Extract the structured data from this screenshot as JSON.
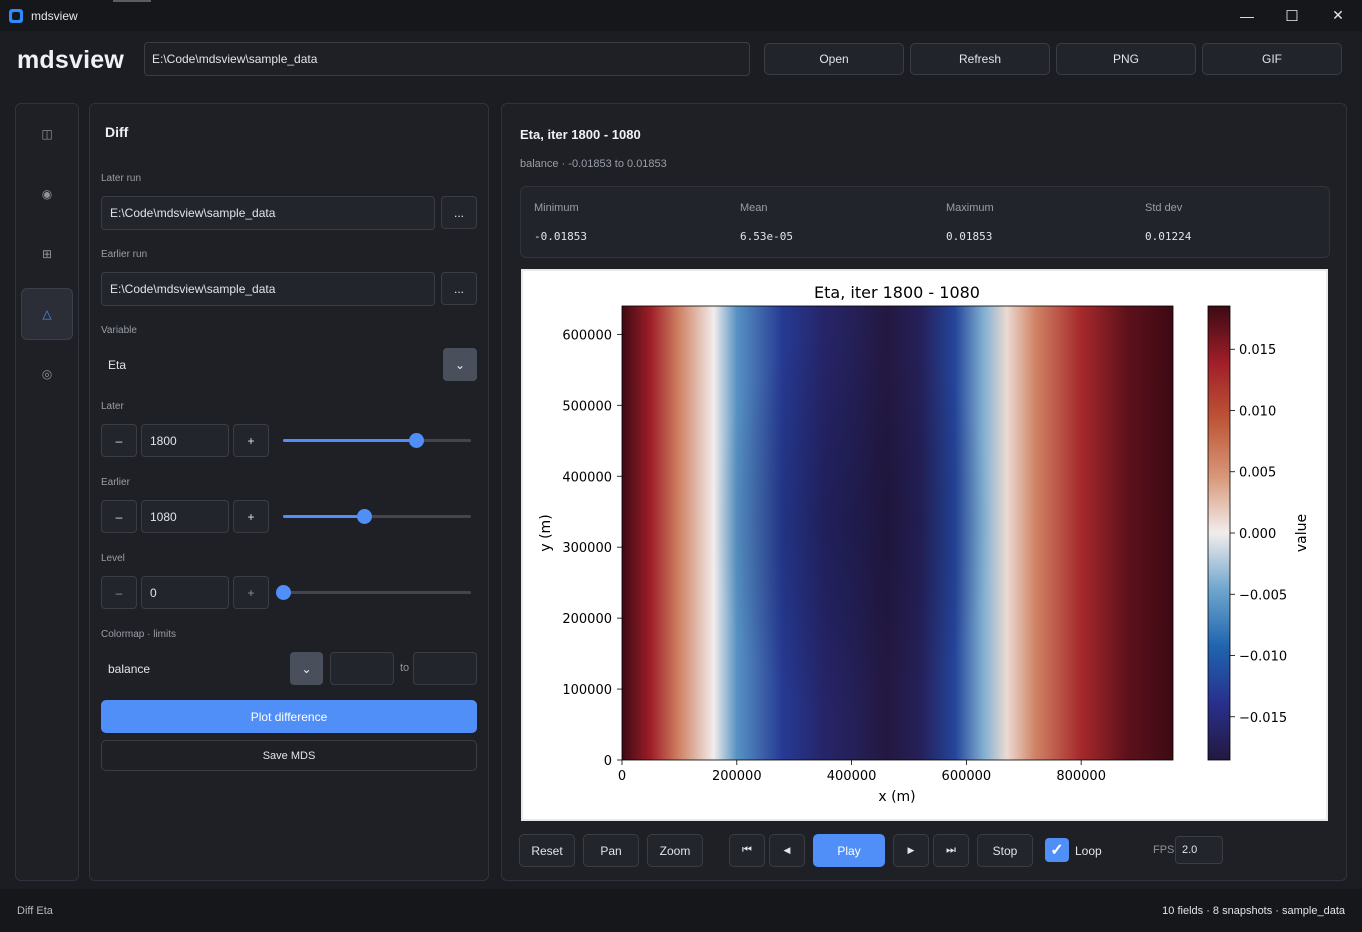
{
  "window": {
    "title": "mdsview",
    "minimize": "—",
    "maximize": "☐",
    "close": "✕"
  },
  "header": {
    "brand": "mdsview",
    "path_value": "E:\\Code\\mdsview\\sample_data",
    "buttons": {
      "open": "Open",
      "refresh": "Refresh",
      "png": "PNG",
      "gif": "GIF"
    }
  },
  "rail": {
    "items": [
      {
        "icon": "columns-icon",
        "glyph": "◫"
      },
      {
        "icon": "target-icon",
        "glyph": "◉"
      },
      {
        "icon": "grid-icon",
        "glyph": "⊞"
      },
      {
        "icon": "triangle-icon",
        "glyph": "△"
      },
      {
        "icon": "layers-icon",
        "glyph": "◎"
      }
    ],
    "active": 3
  },
  "diff": {
    "title": "Diff",
    "later_run": {
      "label": "Later run",
      "value": "E:\\Code\\mdsview\\sample_data",
      "browse": "..."
    },
    "earlier_run": {
      "label": "Earlier run",
      "value": "E:\\Code\\mdsview\\sample_data",
      "browse": "..."
    },
    "variable": {
      "label": "Variable",
      "value": "Eta",
      "caret": "⌄"
    },
    "later": {
      "label": "Later",
      "value": "1800",
      "minus": "–",
      "plus": "+",
      "fraction": 0.71
    },
    "earlier": {
      "label": "Earlier",
      "value": "1080",
      "minus": "–",
      "plus": "+",
      "fraction": 0.43
    },
    "level": {
      "label": "Level",
      "value": "0",
      "minus": "–",
      "plus": "+",
      "fraction": 0.0
    },
    "colormap": {
      "label": "Colormap · limits",
      "value": "balance",
      "caret": "⌄",
      "min": "",
      "max": "",
      "to": "to"
    },
    "plot_button": "Plot difference",
    "save_button": "Save MDS"
  },
  "plot": {
    "title": "Eta, iter 1800 - 1080",
    "subtitle": "balance  ·  -0.01853 to 0.01853",
    "stats": [
      {
        "label": "Minimum",
        "value": "-0.01853"
      },
      {
        "label": "Mean",
        "value": "6.53e-05"
      },
      {
        "label": "Maximum",
        "value": "0.01853"
      },
      {
        "label": "Std dev",
        "value": "0.01224"
      }
    ]
  },
  "chart_data": {
    "type": "heatmap",
    "title": "Eta, iter 1800 - 1080",
    "xlabel": "x (m)",
    "ylabel": "y (m)",
    "xlim": [
      0,
      960000
    ],
    "ylim": [
      0,
      640000
    ],
    "x_ticks": [
      0,
      200000,
      400000,
      600000,
      800000
    ],
    "y_ticks": [
      0,
      100000,
      200000,
      300000,
      400000,
      500000,
      600000
    ],
    "colorbar": {
      "label": "value",
      "range": [
        -0.01853,
        0.01853
      ],
      "ticks": [
        -0.015,
        -0.01,
        -0.005,
        0.0,
        0.005,
        0.01,
        0.015
      ],
      "tick_labels": [
        "−0.015",
        "−0.010",
        "−0.005",
        "0.000",
        "0.005",
        "0.010",
        "0.015"
      ]
    },
    "colormap": "balance",
    "profile_x": [
      0,
      50000,
      100000,
      160000,
      200000,
      280000,
      350000,
      400000,
      460000,
      520000,
      580000,
      630000,
      670000,
      720000,
      800000,
      880000,
      960000
    ],
    "profile_values": [
      0.0185,
      0.014,
      0.006,
      0.0,
      -0.006,
      -0.013,
      -0.016,
      -0.017,
      -0.0185,
      -0.017,
      -0.012,
      -0.004,
      0.001,
      0.006,
      0.013,
      0.017,
      0.0185
    ]
  },
  "transport": {
    "reset": "Reset",
    "pan": "Pan",
    "zoom": "Zoom",
    "first": "⏮",
    "prev": "◀",
    "play": "Play",
    "next": "▶",
    "last": "⏭",
    "stop": "Stop",
    "loop_label": "Loop",
    "loop_checked": true,
    "check": "✓",
    "fps_label": "FPS",
    "fps_value": "2.0"
  },
  "status": {
    "left": "Diff Eta",
    "right": "10 fields · 8 snapshots · sample_data"
  }
}
